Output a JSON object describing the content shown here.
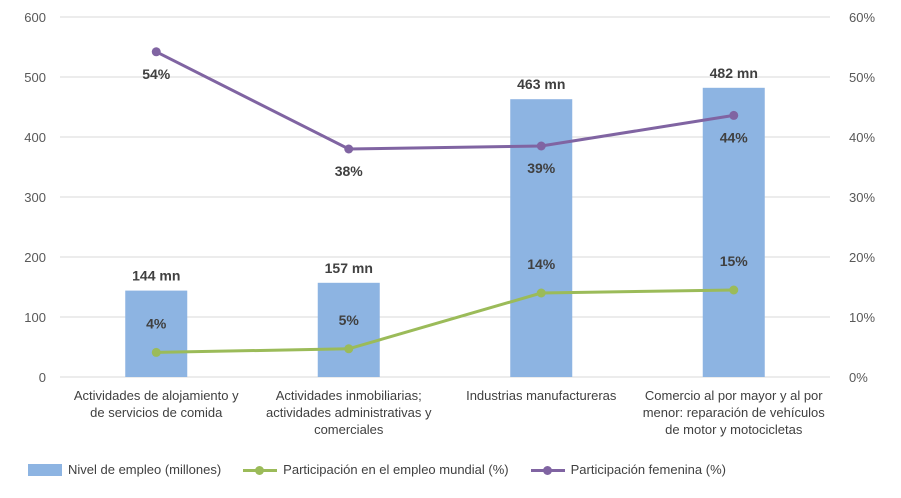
{
  "chart_data": {
    "type": "bar",
    "categories": [
      [
        "Actividades de alojamiento y",
        "de servicios de comida"
      ],
      [
        "Actividades inmobiliarias;",
        "actividades administrativas y",
        "comerciales"
      ],
      [
        "Industrias manufactureras"
      ],
      [
        "Comercio al por mayor y al por",
        "menor: reparación de vehículos",
        "de motor y motocicletas"
      ]
    ],
    "left_axis": {
      "min": 0,
      "max": 600,
      "ticks": [
        "0",
        "100",
        "200",
        "300",
        "400",
        "500",
        "600"
      ]
    },
    "right_axis": {
      "min": 0,
      "max": 60,
      "ticks": [
        "0%",
        "10%",
        "20%",
        "30%",
        "40%",
        "50%",
        "60%"
      ]
    },
    "series": [
      {
        "name": "Nivel de empleo (millones)",
        "type": "bar",
        "axis": "left",
        "color": "#8db4e2",
        "values": [
          144,
          157,
          463,
          482
        ],
        "labels": [
          "144 mn",
          "157 mn",
          "463 mn",
          "482 mn"
        ]
      },
      {
        "name": "Participación en el empleo mundial (%)",
        "type": "line",
        "axis": "right",
        "color": "#9bbb59",
        "values": [
          4.1,
          4.7,
          14.0,
          14.5
        ],
        "labels": [
          "4%",
          "5%",
          "14%",
          "15%"
        ]
      },
      {
        "name": "Participación femenina (%)",
        "type": "line",
        "axis": "right",
        "color": "#8064a2",
        "values": [
          54.2,
          38.0,
          38.5,
          43.6
        ],
        "labels": [
          "54%",
          "38%",
          "39%",
          "44%"
        ]
      }
    ]
  }
}
